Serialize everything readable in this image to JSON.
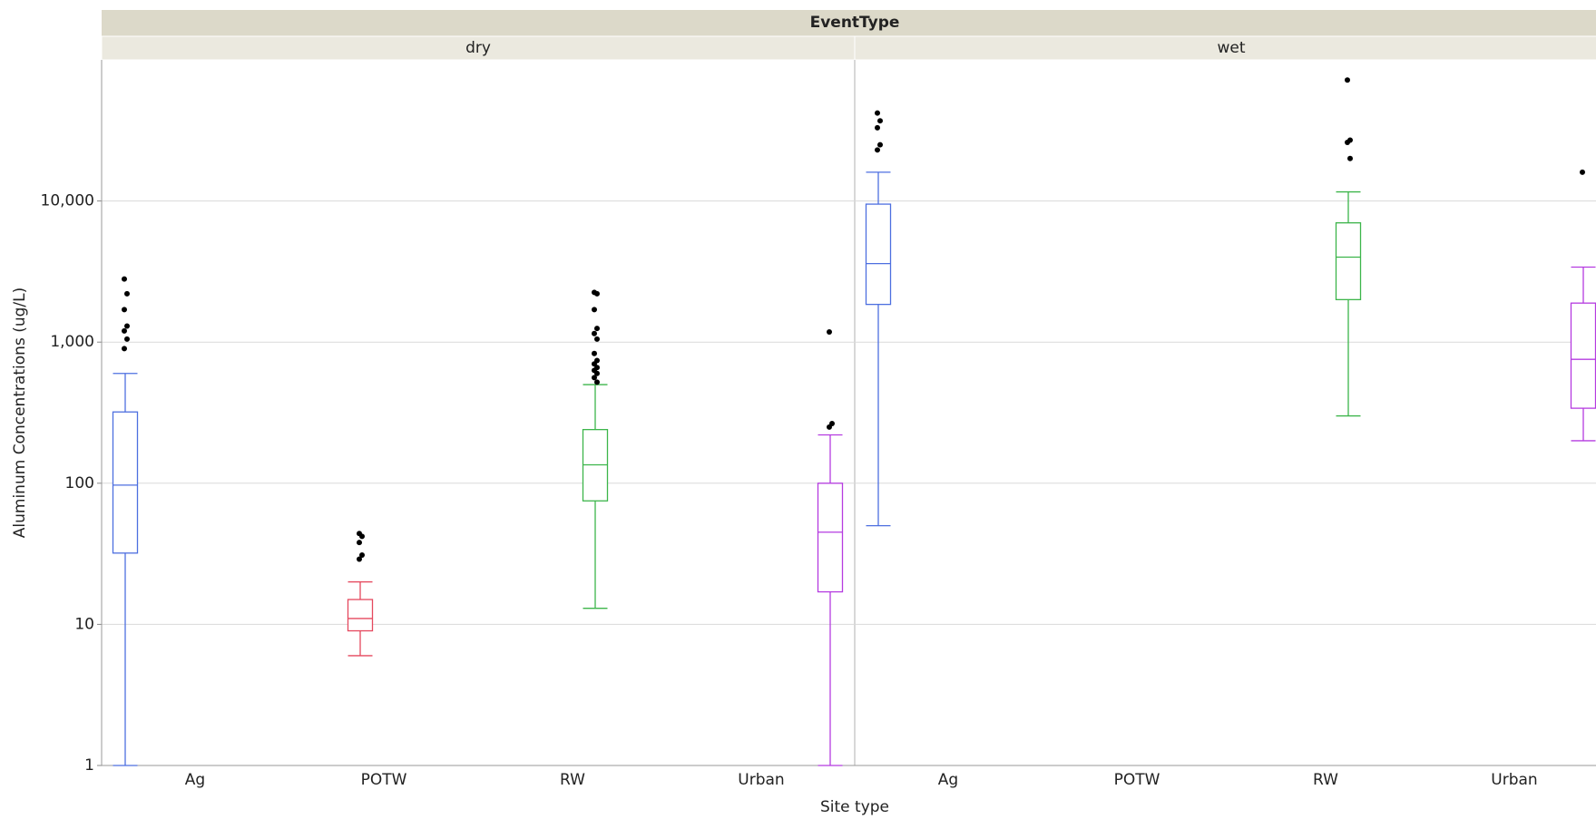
{
  "chart_data": {
    "type": "box",
    "title": "EventType",
    "x_label": "Site type",
    "y_label": "Aluminum Concentrations (ug/L)",
    "log_scale": true,
    "grid": true,
    "ylim": [
      1,
      100000
    ],
    "yticks": [
      1,
      10,
      100,
      {
        "value": 1000,
        "label": "1,000"
      },
      {
        "value": 10000,
        "label": "10,000"
      }
    ],
    "panels": [
      {
        "name": "dry",
        "categories": [
          "Ag",
          "POTW",
          "RW",
          "Urban"
        ],
        "boxes": [
          {
            "color": "#4d6fe0",
            "min": 1,
            "q1": 32,
            "median": 97,
            "q3": 320,
            "max": 600,
            "outliers": [
              2800,
              2200,
              1700,
              1300,
              1200,
              1050,
              900
            ]
          },
          {
            "color": "#e5485e",
            "min": 6,
            "q1": 9,
            "median": 11,
            "q3": 15,
            "max": 20,
            "outliers": [
              44,
              42,
              38,
              31,
              29
            ]
          },
          {
            "color": "#3cb54a",
            "min": 13,
            "q1": 75,
            "median": 135,
            "q3": 240,
            "max": 500,
            "outliers": [
              2250,
              2200,
              1700,
              1250,
              1150,
              1050,
              830,
              740,
              700,
              660,
              630,
              600,
              560,
              520
            ]
          },
          {
            "color": "#b53be0",
            "min": 1,
            "q1": 17,
            "median": 45,
            "q3": 100,
            "max": 220,
            "outliers": [
              1180,
              265,
              250
            ]
          }
        ]
      },
      {
        "name": "wet",
        "categories": [
          "Ag",
          "POTW",
          "RW",
          "Urban"
        ],
        "boxes": [
          {
            "color": "#4d6fe0",
            "min": 50,
            "q1": 1850,
            "median": 3600,
            "q3": 9500,
            "max": 16000,
            "outliers": [
              42000,
              37000,
              33000,
              25000,
              23000
            ]
          },
          null,
          {
            "color": "#3cb54a",
            "min": 300,
            "q1": 2000,
            "median": 4000,
            "q3": 7000,
            "max": 11600,
            "outliers": [
              72000,
              27000,
              26000,
              20000
            ]
          },
          {
            "color": "#b53be0",
            "min": 200,
            "q1": 340,
            "median": 755,
            "q3": 1890,
            "max": 3400,
            "outliers": [
              16000
            ]
          }
        ]
      }
    ]
  }
}
